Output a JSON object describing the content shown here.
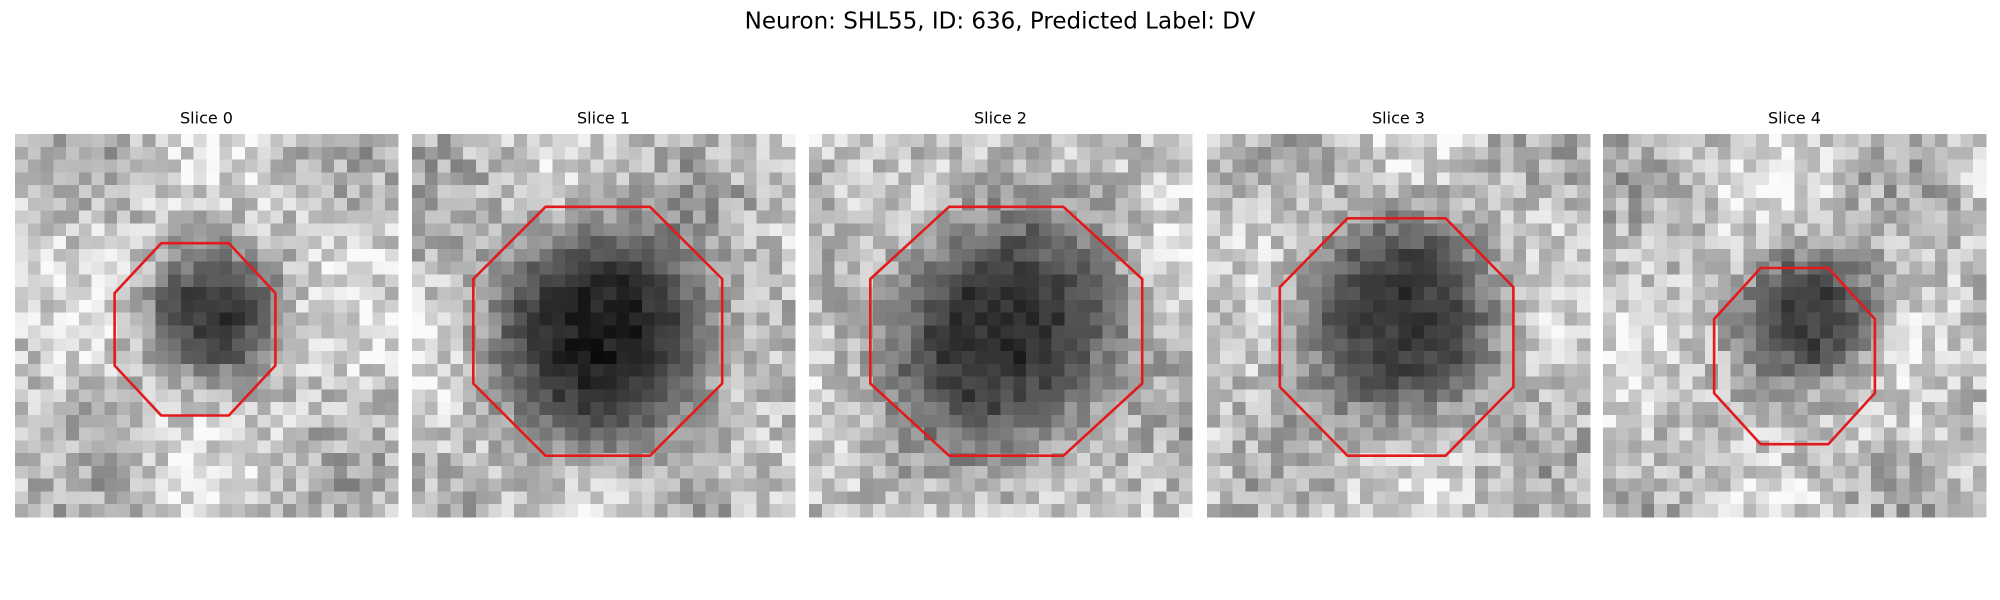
{
  "header": {
    "title": "Neuron: SHL55, ID: 636, Predicted Label: DV"
  },
  "panels": [
    {
      "title": "Slice 0"
    },
    {
      "title": "Slice 1"
    },
    {
      "title": "Slice 2"
    },
    {
      "title": "Slice 3"
    },
    {
      "title": "Slice 4"
    }
  ]
}
